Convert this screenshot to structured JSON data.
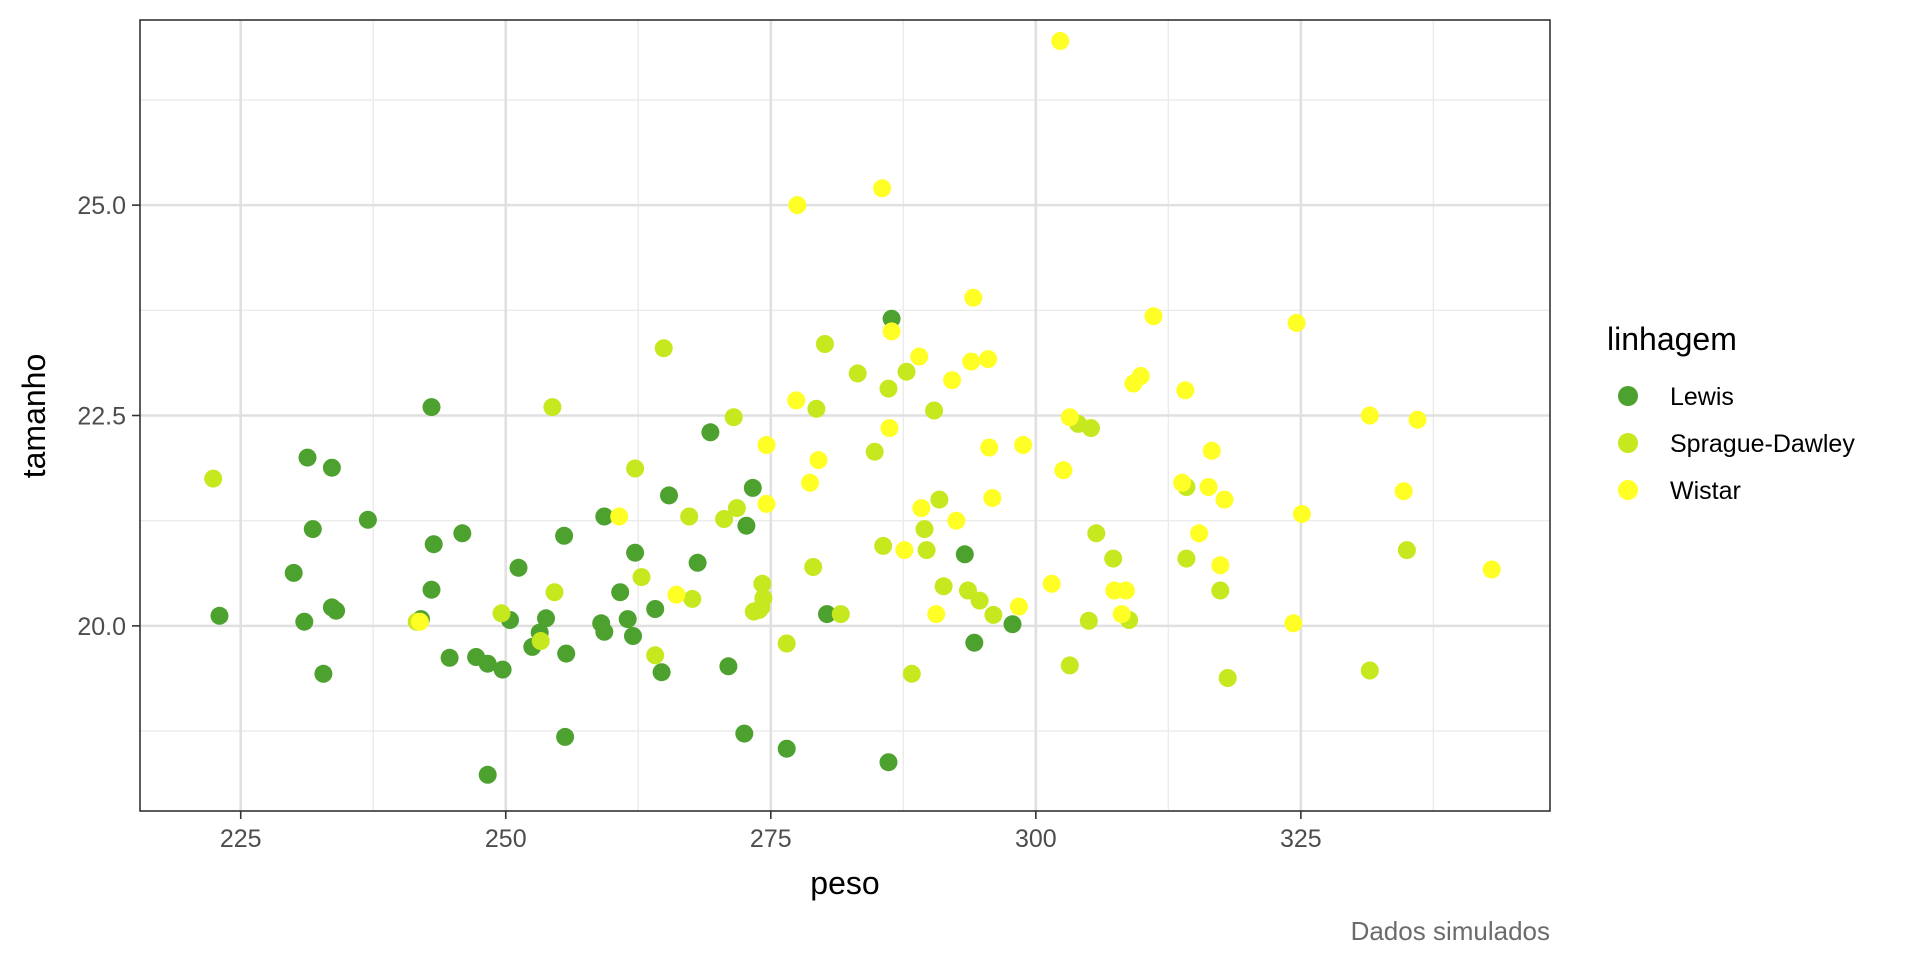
{
  "chart_data": {
    "type": "scatter",
    "title": "",
    "xlabel": "peso",
    "ylabel": "tamanho",
    "caption": "Dados simulados",
    "xlim": [
      215.5,
      348.5
    ],
    "ylim": [
      17.8,
      27.2
    ],
    "x_ticks": [
      225,
      250,
      275,
      300,
      325
    ],
    "x_tick_labels": [
      "225",
      "250",
      "275",
      "300",
      "325"
    ],
    "y_ticks": [
      20.0,
      22.5,
      25.0
    ],
    "y_tick_labels": [
      "20.0",
      "22.5",
      "25.0"
    ],
    "grid": true,
    "legend": {
      "title": "linhagem",
      "position": "right"
    },
    "series": [
      {
        "name": "Lewis",
        "color": "#4da12f",
        "points": [
          [
            223.0,
            20.12
          ],
          [
            230.0,
            20.63
          ],
          [
            231.0,
            20.05
          ],
          [
            231.3,
            22.0
          ],
          [
            231.8,
            21.15
          ],
          [
            232.8,
            19.43
          ],
          [
            233.6,
            20.22
          ],
          [
            233.6,
            21.88
          ],
          [
            234.0,
            20.18
          ],
          [
            237.0,
            21.26
          ],
          [
            242.0,
            20.08
          ],
          [
            243.0,
            22.6
          ],
          [
            243.0,
            20.43
          ],
          [
            243.2,
            20.97
          ],
          [
            244.7,
            19.62
          ],
          [
            245.9,
            21.1
          ],
          [
            247.2,
            19.63
          ],
          [
            248.3,
            18.23
          ],
          [
            248.3,
            19.55
          ],
          [
            249.7,
            19.48
          ],
          [
            250.4,
            20.07
          ],
          [
            251.2,
            20.69
          ],
          [
            252.5,
            19.75
          ],
          [
            253.2,
            19.92
          ],
          [
            253.8,
            20.09
          ],
          [
            255.5,
            21.07
          ],
          [
            255.6,
            18.68
          ],
          [
            255.7,
            19.67
          ],
          [
            259.0,
            20.03
          ],
          [
            259.3,
            21.3
          ],
          [
            259.3,
            19.93
          ],
          [
            260.8,
            20.4
          ],
          [
            261.5,
            20.08
          ],
          [
            262.0,
            19.88
          ],
          [
            262.2,
            20.87
          ],
          [
            264.1,
            20.2
          ],
          [
            264.7,
            19.45
          ],
          [
            265.4,
            21.55
          ],
          [
            268.1,
            20.75
          ],
          [
            269.3,
            22.3
          ],
          [
            271.0,
            19.52
          ],
          [
            272.5,
            18.72
          ],
          [
            272.7,
            21.19
          ],
          [
            273.3,
            21.64
          ],
          [
            276.5,
            18.54
          ],
          [
            280.3,
            20.14
          ],
          [
            286.1,
            18.38
          ],
          [
            286.4,
            23.65
          ],
          [
            293.3,
            20.85
          ],
          [
            294.2,
            19.8
          ],
          [
            297.8,
            20.02
          ]
        ]
      },
      {
        "name": "Sprague-Dawley",
        "color": "#c6e81f",
        "points": [
          [
            222.4,
            21.75
          ],
          [
            241.6,
            20.05
          ],
          [
            249.6,
            20.15
          ],
          [
            253.3,
            19.82
          ],
          [
            254.4,
            22.6
          ],
          [
            254.6,
            20.4
          ],
          [
            262.2,
            21.87
          ],
          [
            262.8,
            20.58
          ],
          [
            264.1,
            19.65
          ],
          [
            264.9,
            23.3
          ],
          [
            267.3,
            21.3
          ],
          [
            267.6,
            20.32
          ],
          [
            270.6,
            21.27
          ],
          [
            271.5,
            22.48
          ],
          [
            271.8,
            21.4
          ],
          [
            273.4,
            20.17
          ],
          [
            273.9,
            20.19
          ],
          [
            274.1,
            20.22
          ],
          [
            274.2,
            20.5
          ],
          [
            274.3,
            20.33
          ],
          [
            276.5,
            19.79
          ],
          [
            279.0,
            20.7
          ],
          [
            279.3,
            22.58
          ],
          [
            280.1,
            23.35
          ],
          [
            281.6,
            20.14
          ],
          [
            283.2,
            23.0
          ],
          [
            284.8,
            22.07
          ],
          [
            285.6,
            20.95
          ],
          [
            286.1,
            22.82
          ],
          [
            287.8,
            23.02
          ],
          [
            288.3,
            19.43
          ],
          [
            289.5,
            21.15
          ],
          [
            289.7,
            20.9
          ],
          [
            290.4,
            22.56
          ],
          [
            290.9,
            21.5
          ],
          [
            291.3,
            20.47
          ],
          [
            293.6,
            20.42
          ],
          [
            294.7,
            20.3
          ],
          [
            296.0,
            20.13
          ],
          [
            304.0,
            22.4
          ],
          [
            305.0,
            20.06
          ],
          [
            305.7,
            21.1
          ],
          [
            307.3,
            20.8
          ],
          [
            308.8,
            20.07
          ],
          [
            314.2,
            20.8
          ],
          [
            314.2,
            21.65
          ],
          [
            317.4,
            20.42
          ],
          [
            318.1,
            19.38
          ],
          [
            331.5,
            19.47
          ],
          [
            335.0,
            20.9
          ],
          [
            303.2,
            19.53
          ],
          [
            305.2,
            22.35
          ]
        ]
      },
      {
        "name": "Wistar",
        "color": "#ffff26",
        "points": [
          [
            241.9,
            20.05
          ],
          [
            260.7,
            21.3
          ],
          [
            266.1,
            20.37
          ],
          [
            274.6,
            22.15
          ],
          [
            274.6,
            21.45
          ],
          [
            277.4,
            22.68
          ],
          [
            277.5,
            25.0
          ],
          [
            278.7,
            21.7
          ],
          [
            279.5,
            21.97
          ],
          [
            285.5,
            25.2
          ],
          [
            286.2,
            22.35
          ],
          [
            286.4,
            23.5
          ],
          [
            287.6,
            20.9
          ],
          [
            289.0,
            23.2
          ],
          [
            289.2,
            21.4
          ],
          [
            290.6,
            20.14
          ],
          [
            292.1,
            22.92
          ],
          [
            292.5,
            21.25
          ],
          [
            293.9,
            23.14
          ],
          [
            294.1,
            23.9
          ],
          [
            295.5,
            23.17
          ],
          [
            295.6,
            22.12
          ],
          [
            295.9,
            21.52
          ],
          [
            298.4,
            20.23
          ],
          [
            298.8,
            22.15
          ],
          [
            301.5,
            20.5
          ],
          [
            302.3,
            26.95
          ],
          [
            302.6,
            21.85
          ],
          [
            303.2,
            22.48
          ],
          [
            307.4,
            20.42
          ],
          [
            308.1,
            20.14
          ],
          [
            308.5,
            20.42
          ],
          [
            309.2,
            22.88
          ],
          [
            309.9,
            22.97
          ],
          [
            311.1,
            23.68
          ],
          [
            313.8,
            21.7
          ],
          [
            314.1,
            22.8
          ],
          [
            315.4,
            21.1
          ],
          [
            316.3,
            21.65
          ],
          [
            316.6,
            22.08
          ],
          [
            317.4,
            20.72
          ],
          [
            317.8,
            21.5
          ],
          [
            324.3,
            20.03
          ],
          [
            324.6,
            23.6
          ],
          [
            325.1,
            21.33
          ],
          [
            331.5,
            22.5
          ],
          [
            334.7,
            21.6
          ],
          [
            336.0,
            22.45
          ],
          [
            343.0,
            20.67
          ]
        ]
      }
    ]
  }
}
